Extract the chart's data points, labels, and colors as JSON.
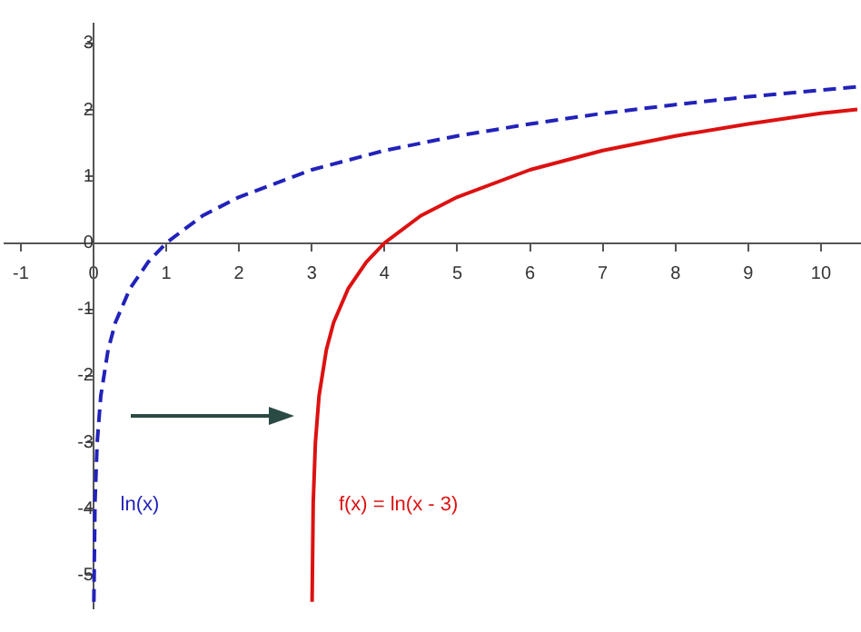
{
  "chart_data": {
    "type": "line",
    "xlim": [
      -1.22,
      10.55
    ],
    "ylim": [
      -5.5,
      3.3
    ],
    "xticks": [
      -1,
      0,
      1,
      2,
      3,
      4,
      5,
      6,
      7,
      8,
      9,
      10
    ],
    "yticks": [
      -5,
      -4,
      -3,
      -2,
      -1,
      0,
      1,
      2,
      3
    ],
    "grid": false,
    "legend": false,
    "series": [
      {
        "name": "ln(x)",
        "color": "#2222bb",
        "line_style": "dashed",
        "x": [
          0.0045,
          0.02,
          0.05,
          0.1,
          0.2,
          0.3,
          0.5,
          0.75,
          1,
          1.5,
          2,
          3,
          4,
          5,
          6,
          7,
          8,
          9,
          10,
          10.5
        ],
        "values": [
          -5.4,
          -3.91,
          -3.0,
          -2.3,
          -1.61,
          -1.2,
          -0.69,
          -0.29,
          0,
          0.41,
          0.69,
          1.1,
          1.39,
          1.61,
          1.79,
          1.95,
          2.08,
          2.2,
          2.3,
          2.35
        ]
      },
      {
        "name": "f(x) = ln(x - 3)",
        "color": "#dd1111",
        "line_style": "solid",
        "x": [
          3.0045,
          3.02,
          3.05,
          3.1,
          3.2,
          3.3,
          3.5,
          3.75,
          4,
          4.5,
          5,
          6,
          7,
          8,
          9,
          10,
          10.5
        ],
        "values": [
          -5.4,
          -3.91,
          -3.0,
          -2.3,
          -1.61,
          -1.2,
          -0.69,
          -0.29,
          0,
          0.41,
          0.69,
          1.1,
          1.39,
          1.61,
          1.79,
          1.95,
          2.01
        ]
      }
    ]
  }
}
